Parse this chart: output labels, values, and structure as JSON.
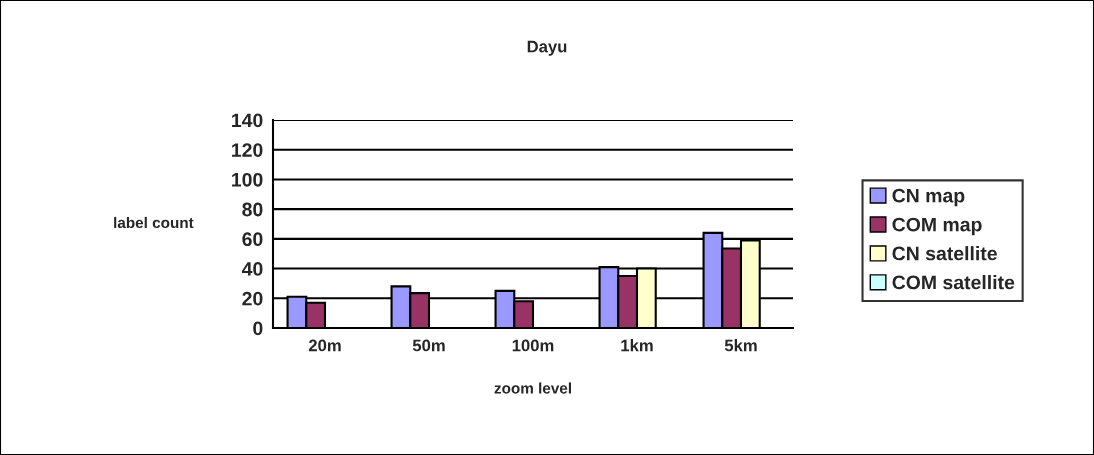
{
  "chart_data": {
    "type": "bar",
    "title": "Dayu",
    "xlabel": "zoom level",
    "ylabel": "label count",
    "categories": [
      "20m",
      "50m",
      "100m",
      "1km",
      "5km"
    ],
    "series": [
      {
        "name": "CN map",
        "color": "#9999ff",
        "values": [
          21,
          28,
          25,
          41,
          64
        ]
      },
      {
        "name": "COM map",
        "color": "#993366",
        "values": [
          17,
          23.5,
          18,
          35,
          53.5
        ]
      },
      {
        "name": "CN satellite",
        "color": "#ffffcc",
        "values": [
          null,
          null,
          null,
          40,
          59
        ]
      },
      {
        "name": "COM satellite",
        "color": "#ccffff",
        "values": [
          null,
          null,
          null,
          null,
          null
        ]
      }
    ],
    "ylim": [
      0,
      140
    ],
    "yticks": [
      0,
      20,
      40,
      60,
      80,
      100,
      120,
      140
    ],
    "grid": "y",
    "legend": "right"
  }
}
